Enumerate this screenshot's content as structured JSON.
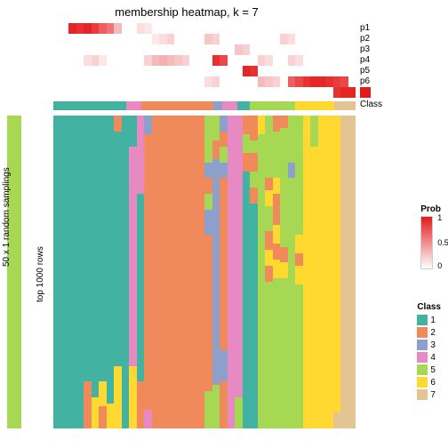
{
  "title": "membership heatmap, k = 7",
  "left_axis_outer": "50 x 1 random samplings",
  "left_axis_inner": "top 1000 rows",
  "p_labels": [
    "p1",
    "p2",
    "p3",
    "p4",
    "p5",
    "p6",
    "p7"
  ],
  "class_row_label": "Class",
  "prob_legend": {
    "title": "Prob",
    "ticks": [
      "1",
      "0.5",
      "0"
    ],
    "gradient_top": "#e41a1c",
    "gradient_bottom": "#ffffff"
  },
  "class_legend": {
    "title": "Class",
    "items": [
      {
        "label": "1",
        "color": "#42b3a2"
      },
      {
        "label": "2",
        "color": "#f08a5a"
      },
      {
        "label": "3",
        "color": "#8da0cb"
      },
      {
        "label": "4",
        "color": "#e78ac3"
      },
      {
        "label": "5",
        "color": "#a6d854"
      },
      {
        "label": "6",
        "color": "#ffd92f"
      },
      {
        "label": "7",
        "color": "#e5c494"
      }
    ]
  },
  "red_square": "#e41a1c",
  "left_green": "#a6d854",
  "n_cols": 40,
  "p_rows": [
    [
      0,
      0,
      0.95,
      0.9,
      0.95,
      0.85,
      0.7,
      0.6,
      0.3,
      0,
      0,
      0.15,
      0.1,
      0,
      0,
      0,
      0,
      0,
      0,
      0,
      0,
      0,
      0,
      0,
      0,
      0,
      0,
      0,
      0,
      0,
      0,
      0,
      0,
      0,
      0,
      0,
      0,
      0,
      0,
      0
    ],
    [
      0,
      0,
      0,
      0,
      0,
      0,
      0,
      0,
      0,
      0,
      0,
      0,
      0,
      0.1,
      0.15,
      0.2,
      0,
      0,
      0,
      0,
      0.25,
      0.2,
      0,
      0,
      0,
      0,
      0,
      0,
      0,
      0,
      0.2,
      0.15,
      0,
      0,
      0,
      0,
      0,
      0,
      0,
      0
    ],
    [
      0,
      0,
      0,
      0,
      0,
      0,
      0,
      0,
      0,
      0,
      0,
      0,
      0,
      0,
      0,
      0,
      0,
      0,
      0,
      0,
      0,
      0,
      0,
      0,
      0.25,
      0.2,
      0,
      0,
      0,
      0,
      0,
      0,
      0,
      0,
      0,
      0,
      0,
      0,
      0,
      0
    ],
    [
      0,
      0,
      0,
      0,
      0.15,
      0.2,
      0.1,
      0,
      0,
      0,
      0,
      0,
      0.2,
      0.3,
      0.35,
      0.3,
      0.25,
      0.2,
      0,
      0,
      0,
      0.9,
      0.8,
      0,
      0,
      0,
      0,
      0.2,
      0.15,
      0,
      0,
      0.2,
      0.15,
      0,
      0,
      0,
      0,
      0,
      0,
      0
    ],
    [
      0,
      0,
      0,
      0,
      0,
      0,
      0,
      0,
      0,
      0,
      0,
      0,
      0,
      0,
      0,
      0,
      0,
      0,
      0,
      0,
      0,
      0,
      0,
      0,
      0,
      0.95,
      0.9,
      0,
      0,
      0,
      0,
      0,
      0,
      0,
      0,
      0,
      0,
      0,
      0,
      0
    ],
    [
      0,
      0,
      0,
      0,
      0,
      0,
      0,
      0,
      0,
      0,
      0,
      0,
      0,
      0,
      0,
      0,
      0,
      0,
      0,
      0,
      0.15,
      0.2,
      0,
      0,
      0,
      0,
      0,
      0.3,
      0.25,
      0.2,
      0,
      0.7,
      0.8,
      0.9,
      0.95,
      0.95,
      0.9,
      0.85,
      0.8,
      0
    ],
    [
      0,
      0,
      0,
      0,
      0,
      0,
      0,
      0,
      0,
      0,
      0,
      0,
      0,
      0,
      0,
      0,
      0,
      0,
      0,
      0,
      0,
      0,
      0,
      0,
      0,
      0,
      0,
      0,
      0,
      0,
      0,
      0,
      0,
      0,
      0,
      0,
      0,
      0.9,
      0.95,
      0.95
    ]
  ],
  "class_strip": [
    {
      "w": 0.24,
      "c": "#42b3a2"
    },
    {
      "w": 0.05,
      "c": "#e78ac3"
    },
    {
      "w": 0.24,
      "c": "#f08a5a"
    },
    {
      "w": 0.03,
      "c": "#8da0cb"
    },
    {
      "w": 0.05,
      "c": "#e78ac3"
    },
    {
      "w": 0.04,
      "c": "#42b3a2"
    },
    {
      "w": 0.15,
      "c": "#a6d854"
    },
    {
      "w": 0.13,
      "c": "#ffd92f"
    },
    {
      "w": 0.07,
      "c": "#e5c494"
    }
  ],
  "heatmap_cols": [
    {
      "x": 0,
      "w": 0.025,
      "segs": [
        {
          "y": 0,
          "h": 1,
          "c": "#42b3a2"
        }
      ]
    },
    {
      "x": 0.025,
      "w": 0.025,
      "segs": [
        {
          "y": 0,
          "h": 1,
          "c": "#42b3a2"
        }
      ]
    },
    {
      "x": 0.05,
      "w": 0.025,
      "segs": [
        {
          "y": 0,
          "h": 1,
          "c": "#42b3a2"
        }
      ]
    },
    {
      "x": 0.075,
      "w": 0.025,
      "segs": [
        {
          "y": 0,
          "h": 1,
          "c": "#42b3a2"
        }
      ]
    },
    {
      "x": 0.1,
      "w": 0.025,
      "segs": [
        {
          "y": 0,
          "h": 0.85,
          "c": "#42b3a2"
        },
        {
          "y": 0.85,
          "h": 0.15,
          "c": "#f08a5a"
        }
      ]
    },
    {
      "x": 0.125,
      "w": 0.025,
      "segs": [
        {
          "y": 0,
          "h": 0.9,
          "c": "#42b3a2"
        },
        {
          "y": 0.9,
          "h": 0.1,
          "c": "#ffd92f"
        }
      ]
    },
    {
      "x": 0.15,
      "w": 0.025,
      "segs": [
        {
          "y": 0,
          "h": 0.85,
          "c": "#42b3a2"
        },
        {
          "y": 0.85,
          "h": 0.08,
          "c": "#ffd92f"
        },
        {
          "y": 0.93,
          "h": 0.07,
          "c": "#f08a5a"
        }
      ]
    },
    {
      "x": 0.175,
      "w": 0.025,
      "segs": [
        {
          "y": 0,
          "h": 0.92,
          "c": "#42b3a2"
        },
        {
          "y": 0.92,
          "h": 0.08,
          "c": "#ffd92f"
        }
      ]
    },
    {
      "x": 0.2,
      "w": 0.025,
      "segs": [
        {
          "y": 0,
          "h": 0.05,
          "c": "#f08a5a"
        },
        {
          "y": 0.05,
          "h": 0.75,
          "c": "#42b3a2"
        },
        {
          "y": 0.8,
          "h": 0.2,
          "c": "#ffd92f"
        }
      ]
    },
    {
      "x": 0.225,
      "w": 0.025,
      "segs": [
        {
          "y": 0,
          "h": 1,
          "c": "#42b3a2"
        }
      ]
    },
    {
      "x": 0.25,
      "w": 0.025,
      "segs": [
        {
          "y": 0,
          "h": 0.1,
          "c": "#42b3a2"
        },
        {
          "y": 0.1,
          "h": 0.7,
          "c": "#e78ac3"
        },
        {
          "y": 0.8,
          "h": 0.2,
          "c": "#ffd92f"
        }
      ]
    },
    {
      "x": 0.275,
      "w": 0.025,
      "segs": [
        {
          "y": 0,
          "h": 0.25,
          "c": "#e78ac3"
        },
        {
          "y": 0.25,
          "h": 0.6,
          "c": "#42b3a2"
        },
        {
          "y": 0.85,
          "h": 0.15,
          "c": "#f08a5a"
        }
      ]
    },
    {
      "x": 0.3,
      "w": 0.025,
      "segs": [
        {
          "y": 0,
          "h": 0.06,
          "c": "#8da0cb"
        },
        {
          "y": 0.06,
          "h": 0.88,
          "c": "#f08a5a"
        },
        {
          "y": 0.94,
          "h": 0.06,
          "c": "#e78ac3"
        }
      ]
    },
    {
      "x": 0.325,
      "w": 0.025,
      "segs": [
        {
          "y": 0,
          "h": 1,
          "c": "#f08a5a"
        }
      ]
    },
    {
      "x": 0.35,
      "w": 0.025,
      "segs": [
        {
          "y": 0,
          "h": 1,
          "c": "#f08a5a"
        }
      ]
    },
    {
      "x": 0.375,
      "w": 0.025,
      "segs": [
        {
          "y": 0,
          "h": 1,
          "c": "#f08a5a"
        }
      ]
    },
    {
      "x": 0.4,
      "w": 0.025,
      "segs": [
        {
          "y": 0,
          "h": 1,
          "c": "#f08a5a"
        }
      ]
    },
    {
      "x": 0.425,
      "w": 0.025,
      "segs": [
        {
          "y": 0,
          "h": 1,
          "c": "#f08a5a"
        }
      ]
    },
    {
      "x": 0.45,
      "w": 0.025,
      "segs": [
        {
          "y": 0,
          "h": 1,
          "c": "#f08a5a"
        }
      ]
    },
    {
      "x": 0.475,
      "w": 0.025,
      "segs": [
        {
          "y": 0,
          "h": 1,
          "c": "#f08a5a"
        }
      ]
    },
    {
      "x": 0.5,
      "w": 0.025,
      "segs": [
        {
          "y": 0,
          "h": 0.15,
          "c": "#a6d854"
        },
        {
          "y": 0.15,
          "h": 0.05,
          "c": "#8da0cb"
        },
        {
          "y": 0.2,
          "h": 0.05,
          "c": "#f08a5a"
        },
        {
          "y": 0.25,
          "h": 0.05,
          "c": "#a6d854"
        },
        {
          "y": 0.3,
          "h": 0.08,
          "c": "#8da0cb"
        },
        {
          "y": 0.38,
          "h": 0.5,
          "c": "#f08a5a"
        },
        {
          "y": 0.88,
          "h": 0.12,
          "c": "#a6d854"
        }
      ]
    },
    {
      "x": 0.525,
      "w": 0.025,
      "segs": [
        {
          "y": 0,
          "h": 0.08,
          "c": "#a6d854"
        },
        {
          "y": 0.08,
          "h": 0.06,
          "c": "#f08a5a"
        },
        {
          "y": 0.14,
          "h": 0.72,
          "c": "#8da0cb"
        },
        {
          "y": 0.86,
          "h": 0.14,
          "c": "#a6d854"
        }
      ]
    },
    {
      "x": 0.55,
      "w": 0.025,
      "segs": [
        {
          "y": 0,
          "h": 0.05,
          "c": "#8da0cb"
        },
        {
          "y": 0.05,
          "h": 0.05,
          "c": "#f08a5a"
        },
        {
          "y": 0.1,
          "h": 0.05,
          "c": "#a6d854"
        },
        {
          "y": 0.15,
          "h": 0.05,
          "c": "#8da0cb"
        },
        {
          "y": 0.2,
          "h": 0.55,
          "c": "#f08a5a"
        },
        {
          "y": 0.75,
          "h": 0.1,
          "c": "#8da0cb"
        },
        {
          "y": 0.85,
          "h": 0.15,
          "c": "#f08a5a"
        }
      ]
    },
    {
      "x": 0.575,
      "w": 0.025,
      "segs": [
        {
          "y": 0,
          "h": 1,
          "c": "#e78ac3"
        }
      ]
    },
    {
      "x": 0.6,
      "w": 0.025,
      "segs": [
        {
          "y": 0,
          "h": 0.9,
          "c": "#e78ac3"
        },
        {
          "y": 0.9,
          "h": 0.1,
          "c": "#a6d854"
        }
      ]
    },
    {
      "x": 0.625,
      "w": 0.025,
      "segs": [
        {
          "y": 0,
          "h": 0.06,
          "c": "#f08a5a"
        },
        {
          "y": 0.06,
          "h": 0.06,
          "c": "#a6d854"
        },
        {
          "y": 0.12,
          "h": 0.06,
          "c": "#f08a5a"
        },
        {
          "y": 0.18,
          "h": 0.82,
          "c": "#42b3a2"
        }
      ]
    },
    {
      "x": 0.65,
      "w": 0.025,
      "segs": [
        {
          "y": 0,
          "h": 0.08,
          "c": "#f08a5a"
        },
        {
          "y": 0.08,
          "h": 0.04,
          "c": "#a6d854"
        },
        {
          "y": 0.12,
          "h": 0.06,
          "c": "#f08a5a"
        },
        {
          "y": 0.18,
          "h": 0.05,
          "c": "#a6d854"
        },
        {
          "y": 0.23,
          "h": 0.05,
          "c": "#f08a5a"
        },
        {
          "y": 0.28,
          "h": 0.72,
          "c": "#42b3a2"
        }
      ]
    },
    {
      "x": 0.675,
      "w": 0.025,
      "segs": [
        {
          "y": 0,
          "h": 0.06,
          "c": "#ffd92f"
        },
        {
          "y": 0.06,
          "h": 0.94,
          "c": "#a6d854"
        }
      ]
    },
    {
      "x": 0.7,
      "w": 0.025,
      "segs": [
        {
          "y": 0,
          "h": 0.2,
          "c": "#a6d854"
        },
        {
          "y": 0.2,
          "h": 0.04,
          "c": "#f08a5a"
        },
        {
          "y": 0.24,
          "h": 0.05,
          "c": "#ffd92f"
        },
        {
          "y": 0.29,
          "h": 0.08,
          "c": "#a6d854"
        },
        {
          "y": 0.37,
          "h": 0.06,
          "c": "#f08a5a"
        },
        {
          "y": 0.43,
          "h": 0.05,
          "c": "#ffd92f"
        },
        {
          "y": 0.48,
          "h": 0.05,
          "c": "#f08a5a"
        },
        {
          "y": 0.53,
          "h": 0.47,
          "c": "#a6d854"
        }
      ]
    },
    {
      "x": 0.725,
      "w": 0.025,
      "segs": [
        {
          "y": 0,
          "h": 0.05,
          "c": "#f08a5a"
        },
        {
          "y": 0.05,
          "h": 0.15,
          "c": "#a6d854"
        },
        {
          "y": 0.2,
          "h": 0.05,
          "c": "#ffd92f"
        },
        {
          "y": 0.25,
          "h": 0.1,
          "c": "#f08a5a"
        },
        {
          "y": 0.35,
          "h": 0.06,
          "c": "#ffd92f"
        },
        {
          "y": 0.41,
          "h": 0.05,
          "c": "#f08a5a"
        },
        {
          "y": 0.46,
          "h": 0.06,
          "c": "#ffd92f"
        },
        {
          "y": 0.52,
          "h": 0.48,
          "c": "#a6d854"
        }
      ]
    },
    {
      "x": 0.75,
      "w": 0.025,
      "segs": [
        {
          "y": 0,
          "h": 0.04,
          "c": "#f08a5a"
        },
        {
          "y": 0.04,
          "h": 0.38,
          "c": "#a6d854"
        },
        {
          "y": 0.42,
          "h": 0.05,
          "c": "#f08a5a"
        },
        {
          "y": 0.47,
          "h": 0.05,
          "c": "#ffd92f"
        },
        {
          "y": 0.52,
          "h": 0.48,
          "c": "#a6d854"
        }
      ]
    },
    {
      "x": 0.775,
      "w": 0.025,
      "segs": [
        {
          "y": 0,
          "h": 0.15,
          "c": "#a6d854"
        },
        {
          "y": 0.15,
          "h": 0.05,
          "c": "#8da0cb"
        },
        {
          "y": 0.2,
          "h": 0.8,
          "c": "#a6d854"
        }
      ]
    },
    {
      "x": 0.8,
      "w": 0.025,
      "segs": [
        {
          "y": 0,
          "h": 0.38,
          "c": "#a6d854"
        },
        {
          "y": 0.38,
          "h": 0.06,
          "c": "#ffd92f"
        },
        {
          "y": 0.44,
          "h": 0.04,
          "c": "#f08a5a"
        },
        {
          "y": 0.48,
          "h": 0.06,
          "c": "#ffd92f"
        },
        {
          "y": 0.54,
          "h": 0.46,
          "c": "#a6d854"
        }
      ]
    },
    {
      "x": 0.825,
      "w": 0.025,
      "segs": [
        {
          "y": 0,
          "h": 1,
          "c": "#ffd92f"
        }
      ]
    },
    {
      "x": 0.85,
      "w": 0.025,
      "segs": [
        {
          "y": 0,
          "h": 0.1,
          "c": "#a6d854"
        },
        {
          "y": 0.1,
          "h": 0.9,
          "c": "#ffd92f"
        }
      ]
    },
    {
      "x": 0.875,
      "w": 0.025,
      "segs": [
        {
          "y": 0,
          "h": 1,
          "c": "#ffd92f"
        }
      ]
    },
    {
      "x": 0.9,
      "w": 0.025,
      "segs": [
        {
          "y": 0,
          "h": 1,
          "c": "#ffd92f"
        }
      ]
    },
    {
      "x": 0.925,
      "w": 0.025,
      "segs": [
        {
          "y": 0,
          "h": 0.95,
          "c": "#ffd92f"
        },
        {
          "y": 0.95,
          "h": 0.05,
          "c": "#e5c494"
        }
      ]
    },
    {
      "x": 0.95,
      "w": 0.025,
      "segs": [
        {
          "y": 0,
          "h": 1,
          "c": "#e5c494"
        }
      ]
    },
    {
      "x": 0.975,
      "w": 0.025,
      "segs": [
        {
          "y": 0,
          "h": 1,
          "c": "#e5c494"
        }
      ]
    }
  ]
}
